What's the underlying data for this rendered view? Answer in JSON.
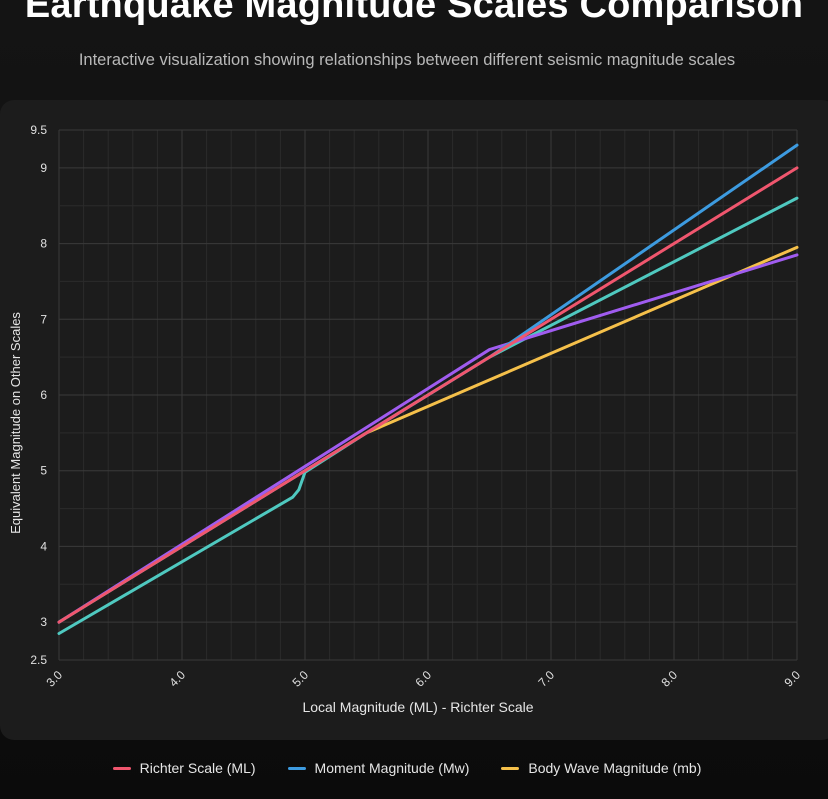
{
  "header": {
    "title": "Earthquake Magnitude Scales Comparison",
    "subtitle": "Interactive visualization showing relationships between different seismic magnitude scales"
  },
  "chart_data": {
    "type": "line",
    "xlabel": "Local Magnitude (ML) - Richter Scale",
    "ylabel": "Equivalent Magnitude on Other Scales",
    "xlim": [
      3.0,
      9.0
    ],
    "ylim": [
      2.5,
      9.5
    ],
    "x_ticks": [
      3.0,
      4.0,
      5.0,
      6.0,
      7.0,
      8.0,
      9.0
    ],
    "x_tick_labels": [
      "3.0",
      "4.0",
      "5.0",
      "6.0",
      "7.0",
      "8.0",
      "9.0"
    ],
    "y_ticks": [
      2.5,
      3,
      4,
      5,
      6,
      7,
      8,
      9,
      9.5
    ],
    "y_tick_labels": [
      "2.5",
      "3",
      "4",
      "5",
      "6",
      "7",
      "8",
      "9",
      "9.5"
    ],
    "grid": true,
    "legend_placement": "bottom",
    "series": [
      {
        "name": "Richter Scale (ML)",
        "color": "#f0566e",
        "legend": true,
        "points": [
          [
            3.0,
            3.0
          ],
          [
            9.0,
            9.0
          ]
        ]
      },
      {
        "name": "Moment Magnitude (Mw)",
        "color": "#3d9be0",
        "legend": true,
        "points": [
          [
            3.0,
            3.0
          ],
          [
            5.0,
            5.0
          ],
          [
            6.5,
            6.5
          ],
          [
            9.0,
            9.3
          ]
        ]
      },
      {
        "name": "Body Wave Magnitude (mb)",
        "color": "#f5c04a",
        "legend": true,
        "points": [
          [
            3.0,
            3.0
          ],
          [
            5.5,
            5.5
          ],
          [
            9.0,
            7.95
          ]
        ]
      },
      {
        "name": "",
        "color": "#a05cf0",
        "legend": false,
        "points": [
          [
            3.0,
            3.0
          ],
          [
            6.5,
            6.6
          ],
          [
            9.0,
            7.85
          ]
        ]
      },
      {
        "name": "",
        "color": "#4fc9c0",
        "legend": false,
        "points": [
          [
            3.0,
            2.85
          ],
          [
            4.9,
            4.65
          ],
          [
            4.95,
            4.75
          ],
          [
            5.0,
            4.98
          ],
          [
            5.5,
            5.5
          ],
          [
            6.5,
            6.5
          ],
          [
            9.0,
            8.6
          ]
        ]
      }
    ]
  }
}
